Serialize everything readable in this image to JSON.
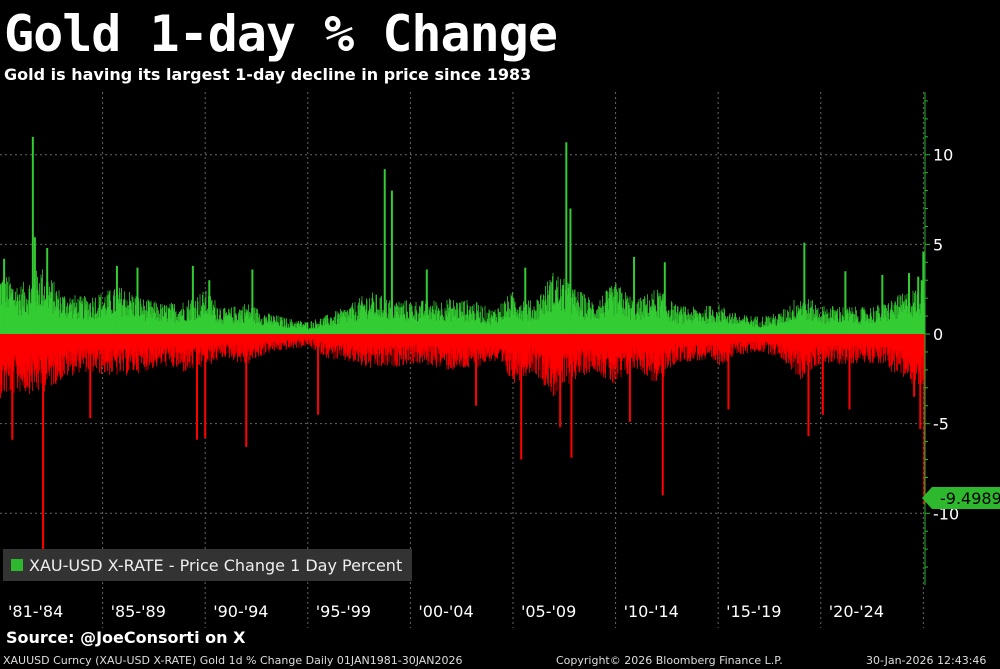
{
  "header": {
    "title": "Gold 1-day % Change",
    "subtitle": "Gold is having its largest 1-day decline in price since 1983"
  },
  "legend": {
    "label": "XAU-USD X-RATE - Price Change 1 Day Percent",
    "color": "#2db82d"
  },
  "last_value": {
    "text": "-9.4989",
    "value": -9.4989,
    "color": "#2db82d"
  },
  "source": "Source: @JoeConsorti on X",
  "footer": {
    "description": "XAUUSD Curncy (XAU-USD X-RATE) Gold 1d % Change Daily 01JAN1981-30JAN2026",
    "copyright": "Copyright© 2026 Bloomberg Finance L.P.",
    "timestamp": "30-Jan-2026 12:43:46"
  },
  "colors": {
    "up": "#33cc33",
    "down": "#ff0000",
    "grid": "#666666",
    "axis": "#2db82d",
    "background": "#000000"
  },
  "chart_data": {
    "type": "bar",
    "title": "Gold 1-day % Change",
    "series_name": "XAU-USD X-RATE - Price Change 1 Day Percent",
    "xlabel": "",
    "ylabel": "",
    "x_range": [
      1981.0,
      2026.08
    ],
    "ylim": [
      -14,
      13.5
    ],
    "y_ticks": [
      10,
      5,
      0,
      -5,
      -10
    ],
    "y_tick_labels": [
      "10",
      "5",
      "0",
      "-5",
      "-10"
    ],
    "x_periods": [
      {
        "label": "'81-'84",
        "start": 1981,
        "end": 1986
      },
      {
        "label": "'85-'89",
        "start": 1986,
        "end": 1991
      },
      {
        "label": "'90-'94",
        "start": 1991,
        "end": 1996
      },
      {
        "label": "'95-'99",
        "start": 1996,
        "end": 2001
      },
      {
        "label": "'00-'04",
        "start": 2001,
        "end": 2006
      },
      {
        "label": "'05-'09",
        "start": 2006,
        "end": 2011
      },
      {
        "label": "'10-'14",
        "start": 2011,
        "end": 2016
      },
      {
        "label": "'15-'19",
        "start": 2016,
        "end": 2021
      },
      {
        "label": "'20-'24",
        "start": 2021,
        "end": 2026
      }
    ],
    "envelope_up": [
      [
        1981.0,
        3.6
      ],
      [
        1982.0,
        2.8
      ],
      [
        1982.5,
        3.2
      ],
      [
        1983.0,
        3.9
      ],
      [
        1984.0,
        2.4
      ],
      [
        1985.0,
        2.1
      ],
      [
        1986.0,
        2.4
      ],
      [
        1987.0,
        2.7
      ],
      [
        1988.0,
        2.0
      ],
      [
        1989.0,
        1.7
      ],
      [
        1990.0,
        1.9
      ],
      [
        1991.0,
        2.5
      ],
      [
        1992.0,
        1.4
      ],
      [
        1993.0,
        1.8
      ],
      [
        1994.0,
        1.2
      ],
      [
        1995.0,
        0.9
      ],
      [
        1996.0,
        0.7
      ],
      [
        1997.0,
        1.1
      ],
      [
        1998.0,
        1.6
      ],
      [
        1999.0,
        2.4
      ],
      [
        2000.0,
        2.0
      ],
      [
        2001.0,
        1.9
      ],
      [
        2002.0,
        1.9
      ],
      [
        2003.0,
        2.0
      ],
      [
        2004.0,
        1.9
      ],
      [
        2005.0,
        1.4
      ],
      [
        2006.0,
        2.4
      ],
      [
        2007.0,
        1.8
      ],
      [
        2008.0,
        3.6
      ],
      [
        2009.0,
        2.6
      ],
      [
        2010.0,
        1.9
      ],
      [
        2011.0,
        2.9
      ],
      [
        2012.0,
        1.9
      ],
      [
        2013.0,
        2.6
      ],
      [
        2014.0,
        1.6
      ],
      [
        2015.0,
        1.5
      ],
      [
        2016.0,
        1.7
      ],
      [
        2017.0,
        1.1
      ],
      [
        2018.0,
        1.0
      ],
      [
        2019.0,
        1.2
      ],
      [
        2020.0,
        2.3
      ],
      [
        2021.0,
        1.6
      ],
      [
        2022.0,
        1.6
      ],
      [
        2023.0,
        1.5
      ],
      [
        2024.0,
        1.7
      ],
      [
        2025.0,
        2.3
      ],
      [
        2026.08,
        2.8
      ]
    ],
    "envelope_down": [
      [
        1981.0,
        -3.6
      ],
      [
        1982.0,
        -3.3
      ],
      [
        1983.0,
        -3.4
      ],
      [
        1984.0,
        -2.6
      ],
      [
        1985.0,
        -2.1
      ],
      [
        1986.0,
        -2.3
      ],
      [
        1987.0,
        -2.4
      ],
      [
        1988.0,
        -2.1
      ],
      [
        1989.0,
        -1.8
      ],
      [
        1990.0,
        -2.2
      ],
      [
        1991.0,
        -1.9
      ],
      [
        1992.0,
        -1.3
      ],
      [
        1993.0,
        -1.8
      ],
      [
        1994.0,
        -1.1
      ],
      [
        1995.0,
        -0.9
      ],
      [
        1996.0,
        -0.7
      ],
      [
        1997.0,
        -1.4
      ],
      [
        1998.0,
        -1.6
      ],
      [
        1999.0,
        -2.0
      ],
      [
        2000.0,
        -1.9
      ],
      [
        2001.0,
        -1.7
      ],
      [
        2002.0,
        -1.8
      ],
      [
        2003.0,
        -2.1
      ],
      [
        2004.0,
        -2.0
      ],
      [
        2005.0,
        -1.5
      ],
      [
        2006.0,
        -2.8
      ],
      [
        2007.0,
        -2.1
      ],
      [
        2008.0,
        -3.6
      ],
      [
        2009.0,
        -2.6
      ],
      [
        2010.0,
        -2.0
      ],
      [
        2011.0,
        -3.1
      ],
      [
        2012.0,
        -1.9
      ],
      [
        2013.0,
        -2.9
      ],
      [
        2014.0,
        -1.6
      ],
      [
        2015.0,
        -1.5
      ],
      [
        2016.0,
        -1.8
      ],
      [
        2017.0,
        -1.2
      ],
      [
        2018.0,
        -1.0
      ],
      [
        2019.0,
        -1.3
      ],
      [
        2020.0,
        -2.6
      ],
      [
        2021.0,
        -1.7
      ],
      [
        2022.0,
        -1.7
      ],
      [
        2023.0,
        -1.6
      ],
      [
        2024.0,
        -1.7
      ],
      [
        2025.0,
        -2.6
      ],
      [
        2026.08,
        -3.0
      ]
    ],
    "spikes": [
      {
        "x": 1981.2,
        "y": 4.2
      },
      {
        "x": 1981.6,
        "y": -5.9
      },
      {
        "x": 1982.6,
        "y": 11.0
      },
      {
        "x": 1982.7,
        "y": 5.4
      },
      {
        "x": 1983.1,
        "y": -12.0
      },
      {
        "x": 1983.3,
        "y": 4.8
      },
      {
        "x": 1985.4,
        "y": -4.7
      },
      {
        "x": 1986.7,
        "y": 3.8
      },
      {
        "x": 1987.7,
        "y": 3.7
      },
      {
        "x": 1990.4,
        "y": 3.8
      },
      {
        "x": 1990.6,
        "y": -5.9
      },
      {
        "x": 1991.0,
        "y": -5.8
      },
      {
        "x": 1991.2,
        "y": 3.0
      },
      {
        "x": 1993.0,
        "y": -6.3
      },
      {
        "x": 1993.3,
        "y": 3.6
      },
      {
        "x": 1996.5,
        "y": -4.5
      },
      {
        "x": 1999.75,
        "y": 9.2
      },
      {
        "x": 2000.1,
        "y": 8.0
      },
      {
        "x": 2001.8,
        "y": 3.6
      },
      {
        "x": 2004.2,
        "y": -4.0
      },
      {
        "x": 2006.4,
        "y": -7.0
      },
      {
        "x": 2006.6,
        "y": 3.7
      },
      {
        "x": 2008.3,
        "y": -5.2
      },
      {
        "x": 2008.6,
        "y": 10.7
      },
      {
        "x": 2008.8,
        "y": 7.0
      },
      {
        "x": 2008.85,
        "y": -6.9
      },
      {
        "x": 2011.7,
        "y": -4.9
      },
      {
        "x": 2011.9,
        "y": 4.3
      },
      {
        "x": 2013.3,
        "y": -9.0
      },
      {
        "x": 2013.4,
        "y": 4.0
      },
      {
        "x": 2016.5,
        "y": -4.2
      },
      {
        "x": 2020.2,
        "y": 5.1
      },
      {
        "x": 2020.4,
        "y": -5.7
      },
      {
        "x": 2021.1,
        "y": -4.5
      },
      {
        "x": 2022.2,
        "y": 3.5
      },
      {
        "x": 2022.4,
        "y": -4.2
      },
      {
        "x": 2024.0,
        "y": 3.3
      },
      {
        "x": 2025.3,
        "y": 3.4
      },
      {
        "x": 2025.55,
        "y": -3.5
      },
      {
        "x": 2025.75,
        "y": 3.2
      },
      {
        "x": 2025.85,
        "y": -5.3
      },
      {
        "x": 2025.92,
        "y": 3.0
      },
      {
        "x": 2026.0,
        "y": 4.6
      },
      {
        "x": 2026.05,
        "y": -9.4989
      }
    ]
  }
}
